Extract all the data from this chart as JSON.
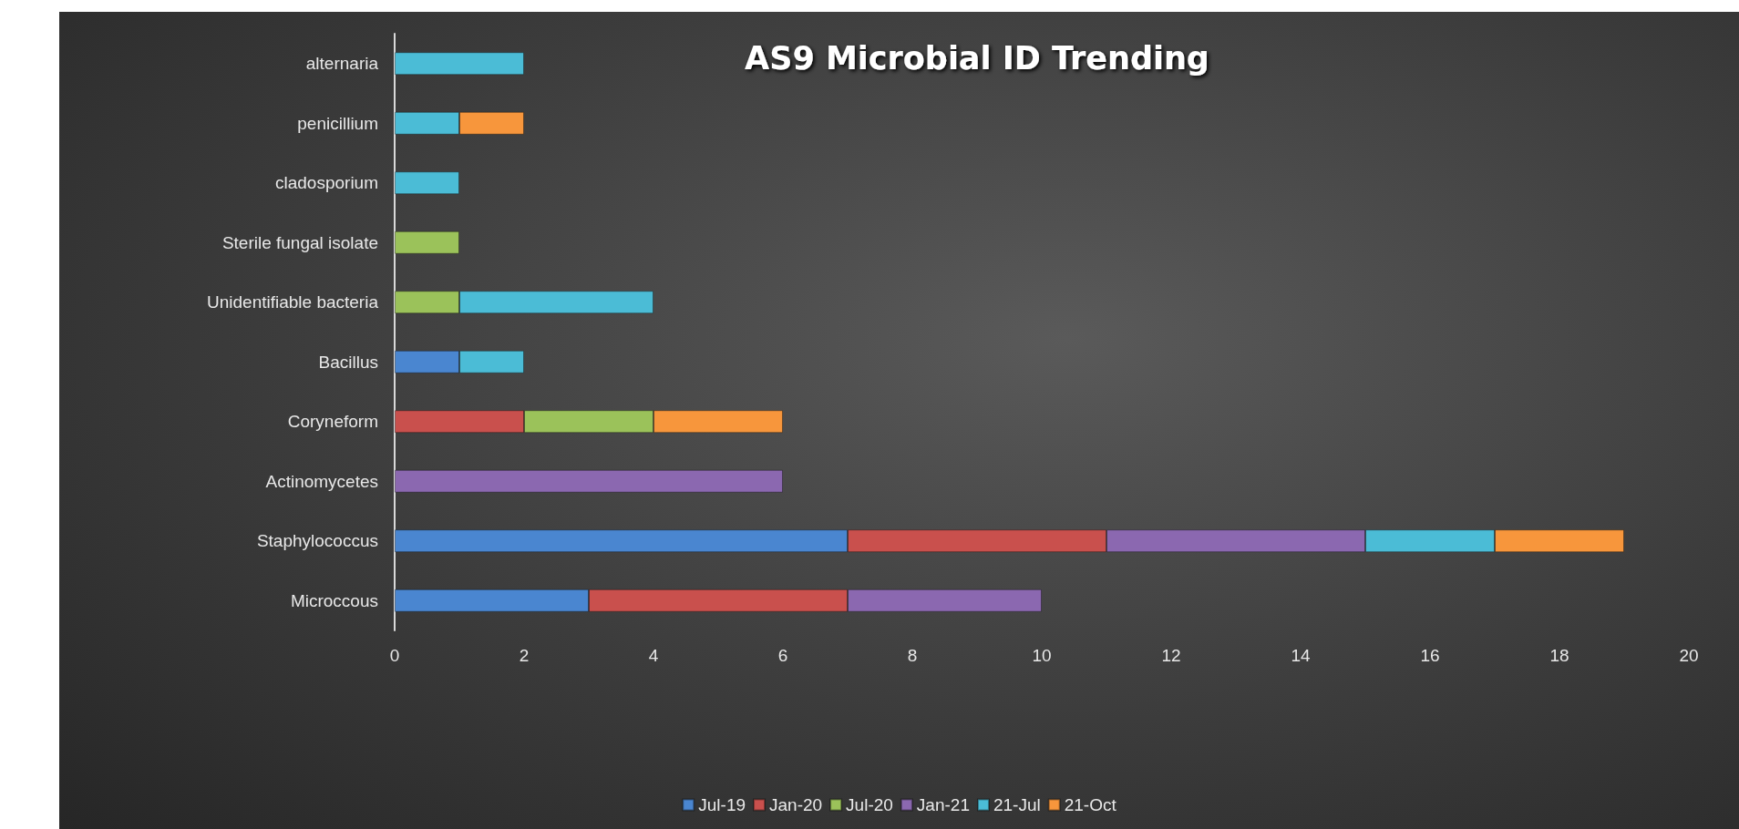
{
  "chart_data": {
    "type": "bar",
    "orientation": "horizontal",
    "stacked": true,
    "title": "AS9 Microbial ID Trending",
    "categories": [
      "alternaria",
      "penicillium",
      "cladosporium",
      "Sterile fungal isolate",
      "Unidentifiable bacteria",
      "Bacillus",
      "Coryneform",
      "Actinomycetes",
      "Staphylococcus",
      "Microccous"
    ],
    "series": [
      {
        "name": "Jul-19",
        "color": "#4a86d0",
        "values": [
          null,
          null,
          null,
          null,
          null,
          1,
          null,
          null,
          7,
          3
        ]
      },
      {
        "name": "Jan-20",
        "color": "#c9504d",
        "values": [
          null,
          null,
          null,
          null,
          null,
          null,
          2,
          null,
          4,
          4
        ]
      },
      {
        "name": "Jul-20",
        "color": "#9bc25a",
        "values": [
          null,
          null,
          null,
          1,
          1,
          null,
          2,
          null,
          null,
          null
        ]
      },
      {
        "name": "Jan-21",
        "color": "#8b68b0",
        "values": [
          null,
          null,
          null,
          null,
          null,
          null,
          null,
          6,
          4,
          3
        ]
      },
      {
        "name": "21-Jul",
        "color": "#4bbcd6",
        "values": [
          2,
          1,
          1,
          null,
          3,
          1,
          null,
          null,
          2,
          null
        ]
      },
      {
        "name": "21-Oct",
        "color": "#f7963c",
        "values": [
          null,
          1,
          null,
          null,
          null,
          null,
          2,
          null,
          2,
          null
        ]
      }
    ],
    "xlim": [
      0,
      20
    ],
    "xticks": [
      0,
      2,
      4,
      6,
      8,
      10,
      12,
      14,
      16,
      18,
      20
    ],
    "grid": false,
    "legend": "bottom"
  }
}
